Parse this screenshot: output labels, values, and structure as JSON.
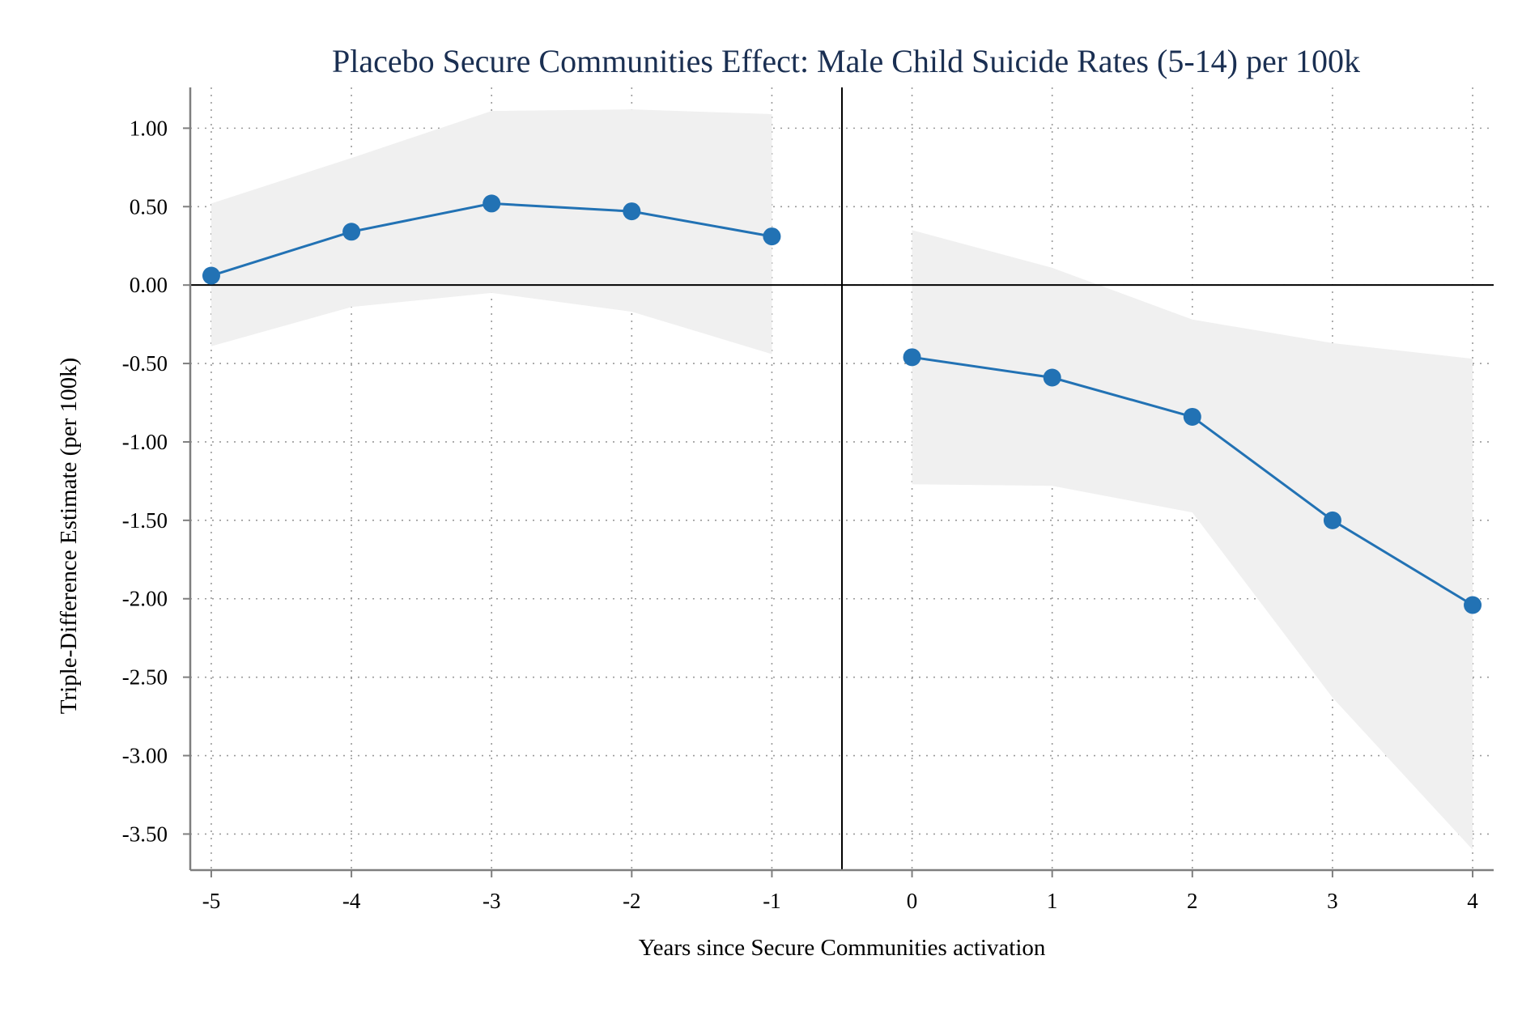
{
  "chart_data": {
    "type": "line",
    "title": "Placebo Secure Communities Effect: Male Child Suicide Rates (5-14) per 100k",
    "xlabel": "Years since Secure Communities activation",
    "ylabel": "Triple-Difference Estimate (per 100k)",
    "x_ticks": [
      -5,
      -4,
      -3,
      -2,
      -1,
      0,
      1,
      2,
      3,
      4
    ],
    "x_tick_labels": [
      "-5",
      "-4",
      "-3",
      "-2",
      "-1",
      "0",
      "1",
      "2",
      "3",
      "4"
    ],
    "y_ticks": [
      1.0,
      0.5,
      0.0,
      -0.5,
      -1.0,
      -1.5,
      -2.0,
      -2.5,
      -3.0,
      -3.5
    ],
    "y_tick_labels": [
      "1.00",
      "0.50",
      "0.00",
      "-0.50",
      "-1.00",
      "-1.50",
      "-2.00",
      "-2.50",
      "-3.00",
      "-3.50"
    ],
    "xlim": [
      -5.15,
      4.15
    ],
    "ylim": [
      -3.73,
      1.26
    ],
    "grid": true,
    "reference_lines": {
      "y": 0,
      "x": -0.5
    },
    "series": [
      {
        "segment": "pre",
        "color": "#2272b4",
        "x": [
          -5,
          -4,
          -3,
          -2,
          -1
        ],
        "y": [
          0.06,
          0.34,
          0.52,
          0.47,
          0.31
        ],
        "ci_lower": [
          -0.39,
          -0.14,
          -0.05,
          -0.17,
          -0.44
        ],
        "ci_upper": [
          0.52,
          0.81,
          1.11,
          1.12,
          1.09
        ]
      },
      {
        "segment": "post",
        "color": "#2272b4",
        "x": [
          0,
          1,
          2,
          3,
          4
        ],
        "y": [
          -0.46,
          -0.59,
          -0.84,
          -1.5,
          -2.04
        ],
        "ci_lower": [
          -1.27,
          -1.28,
          -1.45,
          -2.63,
          -3.6
        ],
        "ci_upper": [
          0.35,
          0.11,
          -0.22,
          -0.37,
          -0.47
        ]
      }
    ],
    "band_color": "#f0f0f0",
    "axis_color": "#7f7f7f"
  }
}
